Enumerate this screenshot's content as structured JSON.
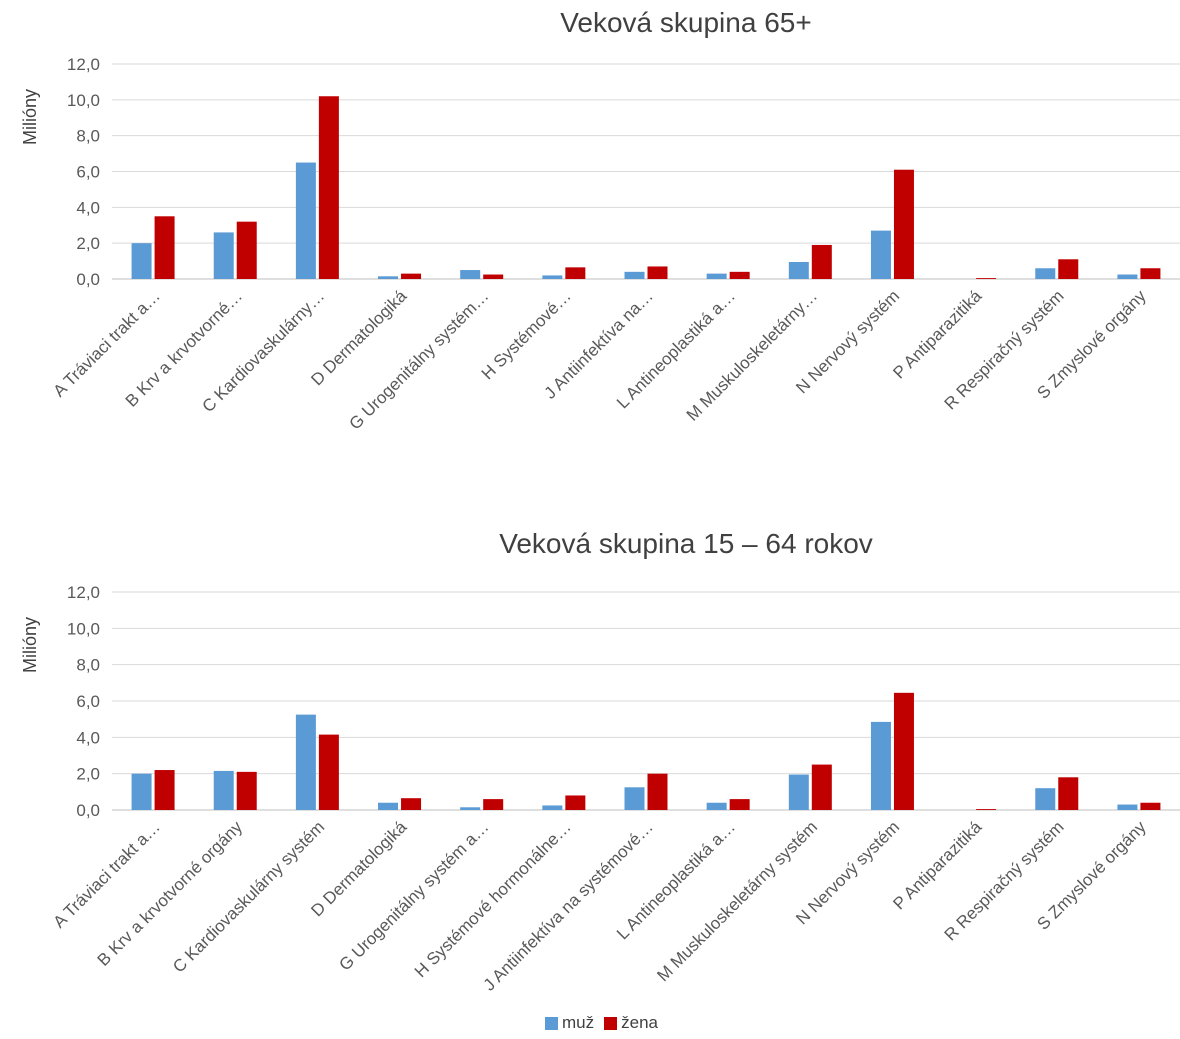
{
  "chart_data": [
    {
      "type": "bar",
      "title": "Veková skupina 65+",
      "ylabel": "Milióny",
      "ylim": [
        0,
        12
      ],
      "yticks": [
        "0,0",
        "2,0",
        "4,0",
        "6,0",
        "8,0",
        "10,0",
        "12,0"
      ],
      "grid": true,
      "categories": [
        "A Tráviaci trakt a…",
        "B Krv a krvotvorné…",
        "C Kardiovaskulárny…",
        "D Dermatologiká",
        "G Urogenitálny systém…",
        "H Systémové…",
        "J Antiinfektíva na…",
        "L Antineoplastiká a…",
        "M Muskuloskeletárny…",
        "N Nervový systém",
        "P Antiparazitiká",
        "R Respiračný systém",
        "S Zmyslové orgány"
      ],
      "series": [
        {
          "name": "muž",
          "values": [
            2.0,
            2.6,
            6.5,
            0.15,
            0.5,
            0.2,
            0.4,
            0.3,
            0.95,
            2.7,
            0.0,
            0.6,
            0.25
          ]
        },
        {
          "name": "žena",
          "values": [
            3.5,
            3.2,
            10.2,
            0.3,
            0.25,
            0.65,
            0.7,
            0.4,
            1.9,
            6.1,
            0.05,
            1.1,
            0.6
          ]
        }
      ]
    },
    {
      "type": "bar",
      "title": "Veková skupina 15 – 64 rokov",
      "ylabel": "Milióny",
      "ylim": [
        0,
        12
      ],
      "yticks": [
        "0,0",
        "2,0",
        "4,0",
        "6,0",
        "8,0",
        "10,0",
        "12,0"
      ],
      "grid": true,
      "categories": [
        "A Tráviaci trakt a…",
        "B Krv a krvotvorné orgány",
        "C Kardiovaskulárny systém",
        "D Dermatologiká",
        "G Urogenitálny systém a…",
        "H Systémové hormonálne…",
        "J Antiinfektíva na systémové…",
        "L Antineoplastiká a…",
        "M Muskuloskeletárny systém",
        "N Nervový systém",
        "P Antiparazitiká",
        "R Respiračný systém",
        "S Zmyslové orgány"
      ],
      "series": [
        {
          "name": "muž",
          "values": [
            2.0,
            2.15,
            5.25,
            0.4,
            0.15,
            0.25,
            1.25,
            0.4,
            1.95,
            4.85,
            0.0,
            1.2,
            0.3
          ]
        },
        {
          "name": "žena",
          "values": [
            2.2,
            2.1,
            4.15,
            0.65,
            0.6,
            0.8,
            2.0,
            0.6,
            2.5,
            6.45,
            0.05,
            1.8,
            0.4
          ]
        }
      ]
    }
  ],
  "legend": {
    "items": [
      {
        "label": "muž",
        "color": "#5b9bd5"
      },
      {
        "label": "žena",
        "color": "#c00000"
      }
    ]
  }
}
